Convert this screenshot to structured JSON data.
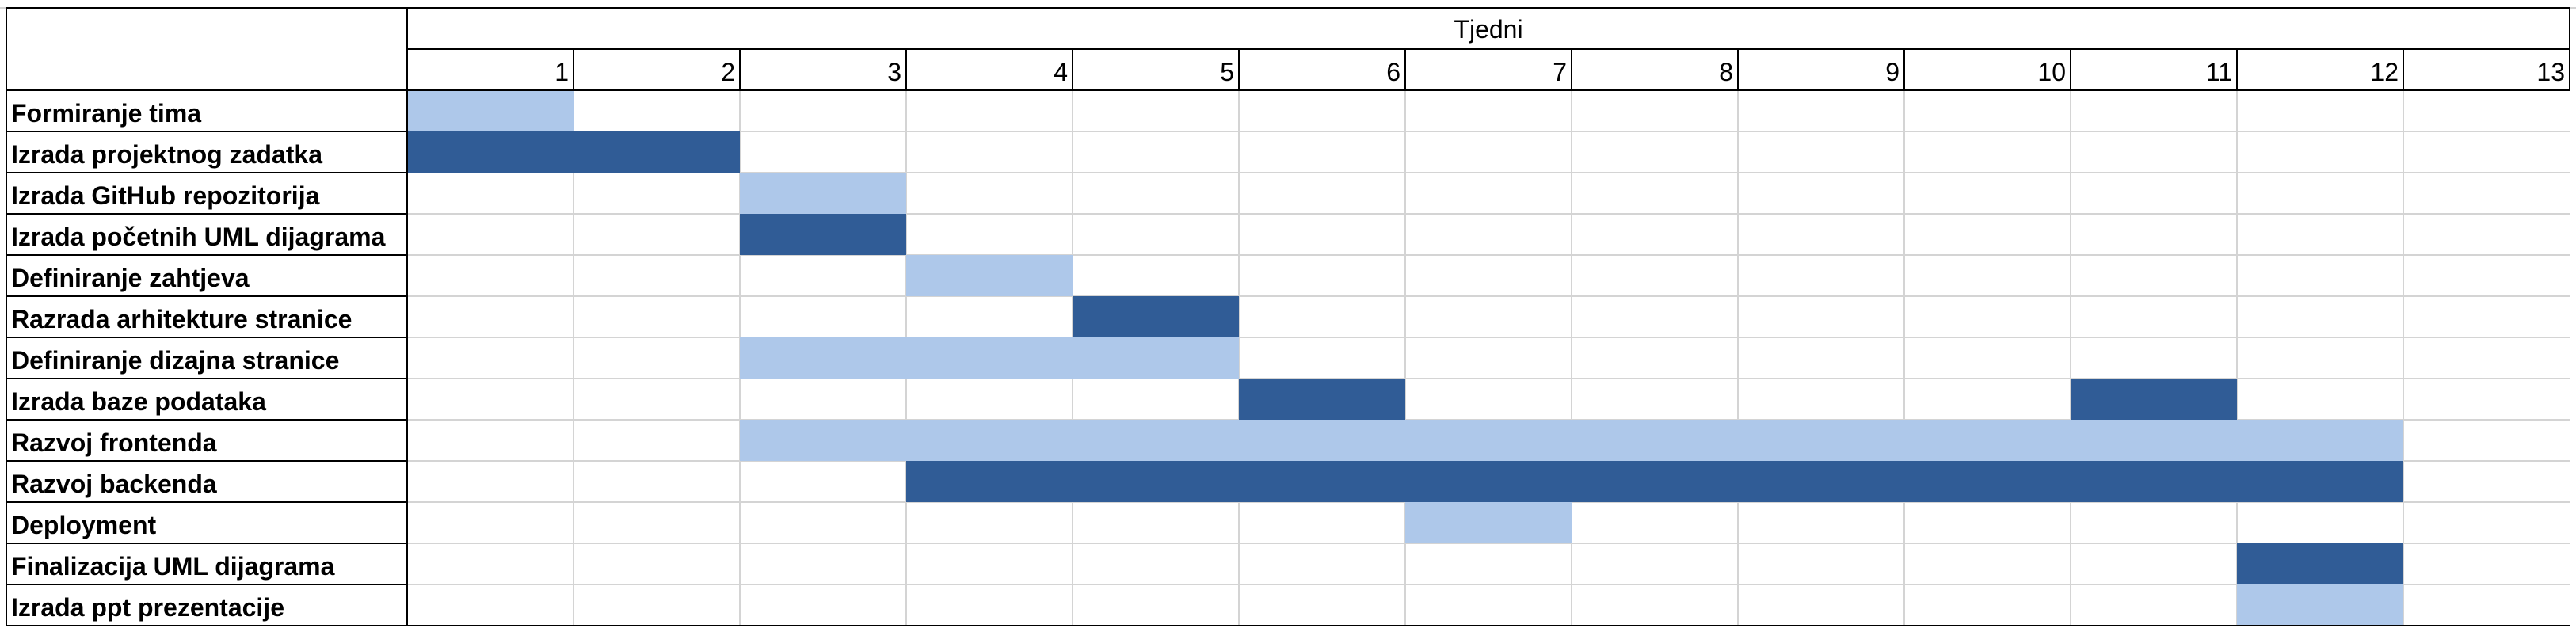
{
  "chart_data": {
    "type": "gantt",
    "header_label": "Tjedni",
    "weeks": [
      "1",
      "2",
      "3",
      "4",
      "5",
      "6",
      "7",
      "8",
      "9",
      "10",
      "11",
      "12",
      "13"
    ],
    "colors": {
      "light": "#aec8ea",
      "dark": "#305c96"
    },
    "tasks": [
      {
        "name": "Formiranje tima",
        "bars": [
          {
            "start": 1,
            "end": 1,
            "color": "light"
          }
        ]
      },
      {
        "name": "Izrada projektnog zadatka",
        "bars": [
          {
            "start": 1,
            "end": 2,
            "color": "dark"
          }
        ]
      },
      {
        "name": "Izrada GitHub repozitorija",
        "bars": [
          {
            "start": 3,
            "end": 3,
            "color": "light"
          }
        ]
      },
      {
        "name": "Izrada početnih UML dijagrama",
        "bars": [
          {
            "start": 3,
            "end": 3,
            "color": "dark"
          }
        ]
      },
      {
        "name": "Definiranje zahtjeva",
        "bars": [
          {
            "start": 4,
            "end": 4,
            "color": "light"
          }
        ]
      },
      {
        "name": "Razrada arhitekture stranice",
        "bars": [
          {
            "start": 5,
            "end": 5,
            "color": "dark"
          }
        ]
      },
      {
        "name": "Definiranje dizajna stranice",
        "bars": [
          {
            "start": 3,
            "end": 5,
            "color": "light"
          }
        ]
      },
      {
        "name": "Izrada baze podataka",
        "bars": [
          {
            "start": 6,
            "end": 6,
            "color": "dark"
          },
          {
            "start": 11,
            "end": 11,
            "color": "dark"
          }
        ]
      },
      {
        "name": "Razvoj frontenda",
        "bars": [
          {
            "start": 3,
            "end": 12,
            "color": "light"
          }
        ]
      },
      {
        "name": "Razvoj backenda",
        "bars": [
          {
            "start": 4,
            "end": 12,
            "color": "dark"
          }
        ]
      },
      {
        "name": "Deployment",
        "bars": [
          {
            "start": 7,
            "end": 7,
            "color": "light"
          }
        ]
      },
      {
        "name": "Finalizacija UML dijagrama",
        "bars": [
          {
            "start": 12,
            "end": 12,
            "color": "dark"
          }
        ]
      },
      {
        "name": "Izrada ppt prezentacije",
        "bars": [
          {
            "start": 12,
            "end": 12,
            "color": "light"
          }
        ]
      }
    ]
  }
}
